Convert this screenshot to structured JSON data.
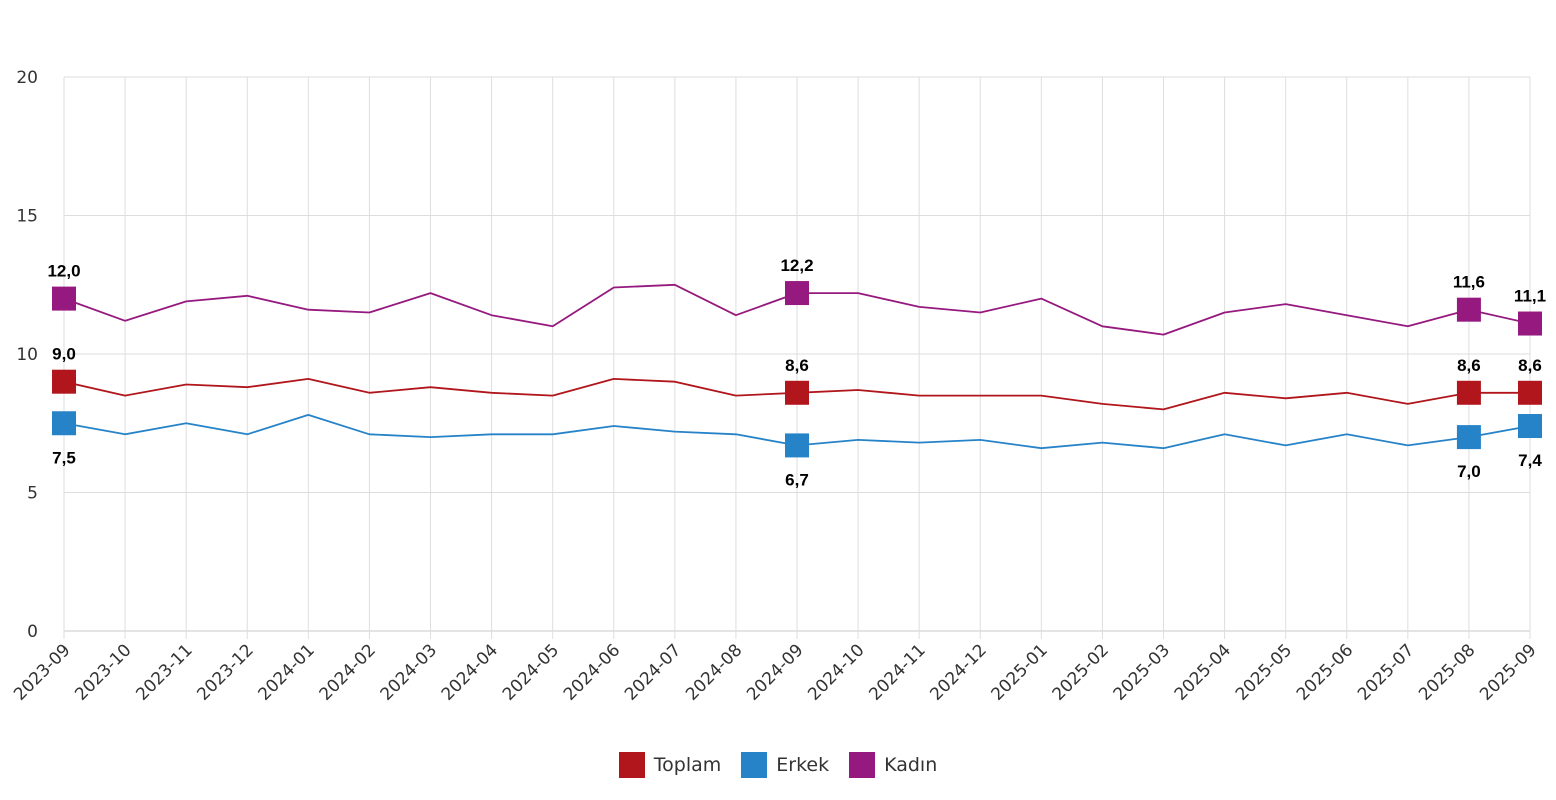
{
  "chart_data": {
    "type": "line",
    "title": "",
    "xlabel": "",
    "ylabel": "",
    "ylim": [
      0,
      20
    ],
    "yticks": [
      "0",
      "5",
      "10",
      "15",
      "20"
    ],
    "grid": true,
    "legend_position": "bottom-center",
    "x": [
      "2023-09",
      "2023-10",
      "2023-11",
      "2023-12",
      "2024-01",
      "2024-02",
      "2024-03",
      "2024-04",
      "2024-05",
      "2024-06",
      "2024-07",
      "2024-08",
      "2024-09",
      "2024-10",
      "2024-11",
      "2024-12",
      "2025-01",
      "2025-02",
      "2025-03",
      "2025-04",
      "2025-05",
      "2025-06",
      "2025-07",
      "2025-08",
      "2025-09"
    ],
    "series": [
      {
        "name": "Toplam",
        "color": "#b0161b",
        "values": [
          9.0,
          8.5,
          8.9,
          8.8,
          9.1,
          8.6,
          8.8,
          8.6,
          8.5,
          9.1,
          9.0,
          8.5,
          8.6,
          8.7,
          8.5,
          8.5,
          8.5,
          8.2,
          8.0,
          8.6,
          8.4,
          8.6,
          8.2,
          8.6,
          8.6
        ],
        "labeled": [
          {
            "i": 0,
            "text": "9,0"
          },
          {
            "i": 12,
            "text": "8,6"
          },
          {
            "i": 23,
            "text": "8,6"
          },
          {
            "i": 24,
            "text": "8,6"
          }
        ],
        "label_side": "above"
      },
      {
        "name": "Erkek",
        "color": "#2783c8",
        "values": [
          7.5,
          7.1,
          7.5,
          7.1,
          7.8,
          7.1,
          7.0,
          7.1,
          7.1,
          7.4,
          7.2,
          7.1,
          6.7,
          6.9,
          6.8,
          6.9,
          6.6,
          6.8,
          6.6,
          7.1,
          6.7,
          7.1,
          6.7,
          7.0,
          7.4
        ],
        "labeled": [
          {
            "i": 0,
            "text": "7,5"
          },
          {
            "i": 12,
            "text": "6,7"
          },
          {
            "i": 23,
            "text": "7,0"
          },
          {
            "i": 24,
            "text": "7,4"
          }
        ],
        "label_side": "below"
      },
      {
        "name": "Kadın",
        "color": "#95197f",
        "values": [
          12.0,
          11.2,
          11.9,
          12.1,
          11.6,
          11.5,
          12.2,
          11.4,
          11.0,
          12.4,
          12.5,
          11.4,
          12.2,
          12.2,
          11.7,
          11.5,
          12.0,
          11.0,
          10.7,
          11.5,
          11.8,
          11.4,
          11.0,
          11.6,
          11.1
        ],
        "labeled": [
          {
            "i": 0,
            "text": "12,0"
          },
          {
            "i": 12,
            "text": "12,2"
          },
          {
            "i": 23,
            "text": "11,6"
          },
          {
            "i": 24,
            "text": "11,1"
          }
        ],
        "label_side": "above"
      }
    ]
  }
}
